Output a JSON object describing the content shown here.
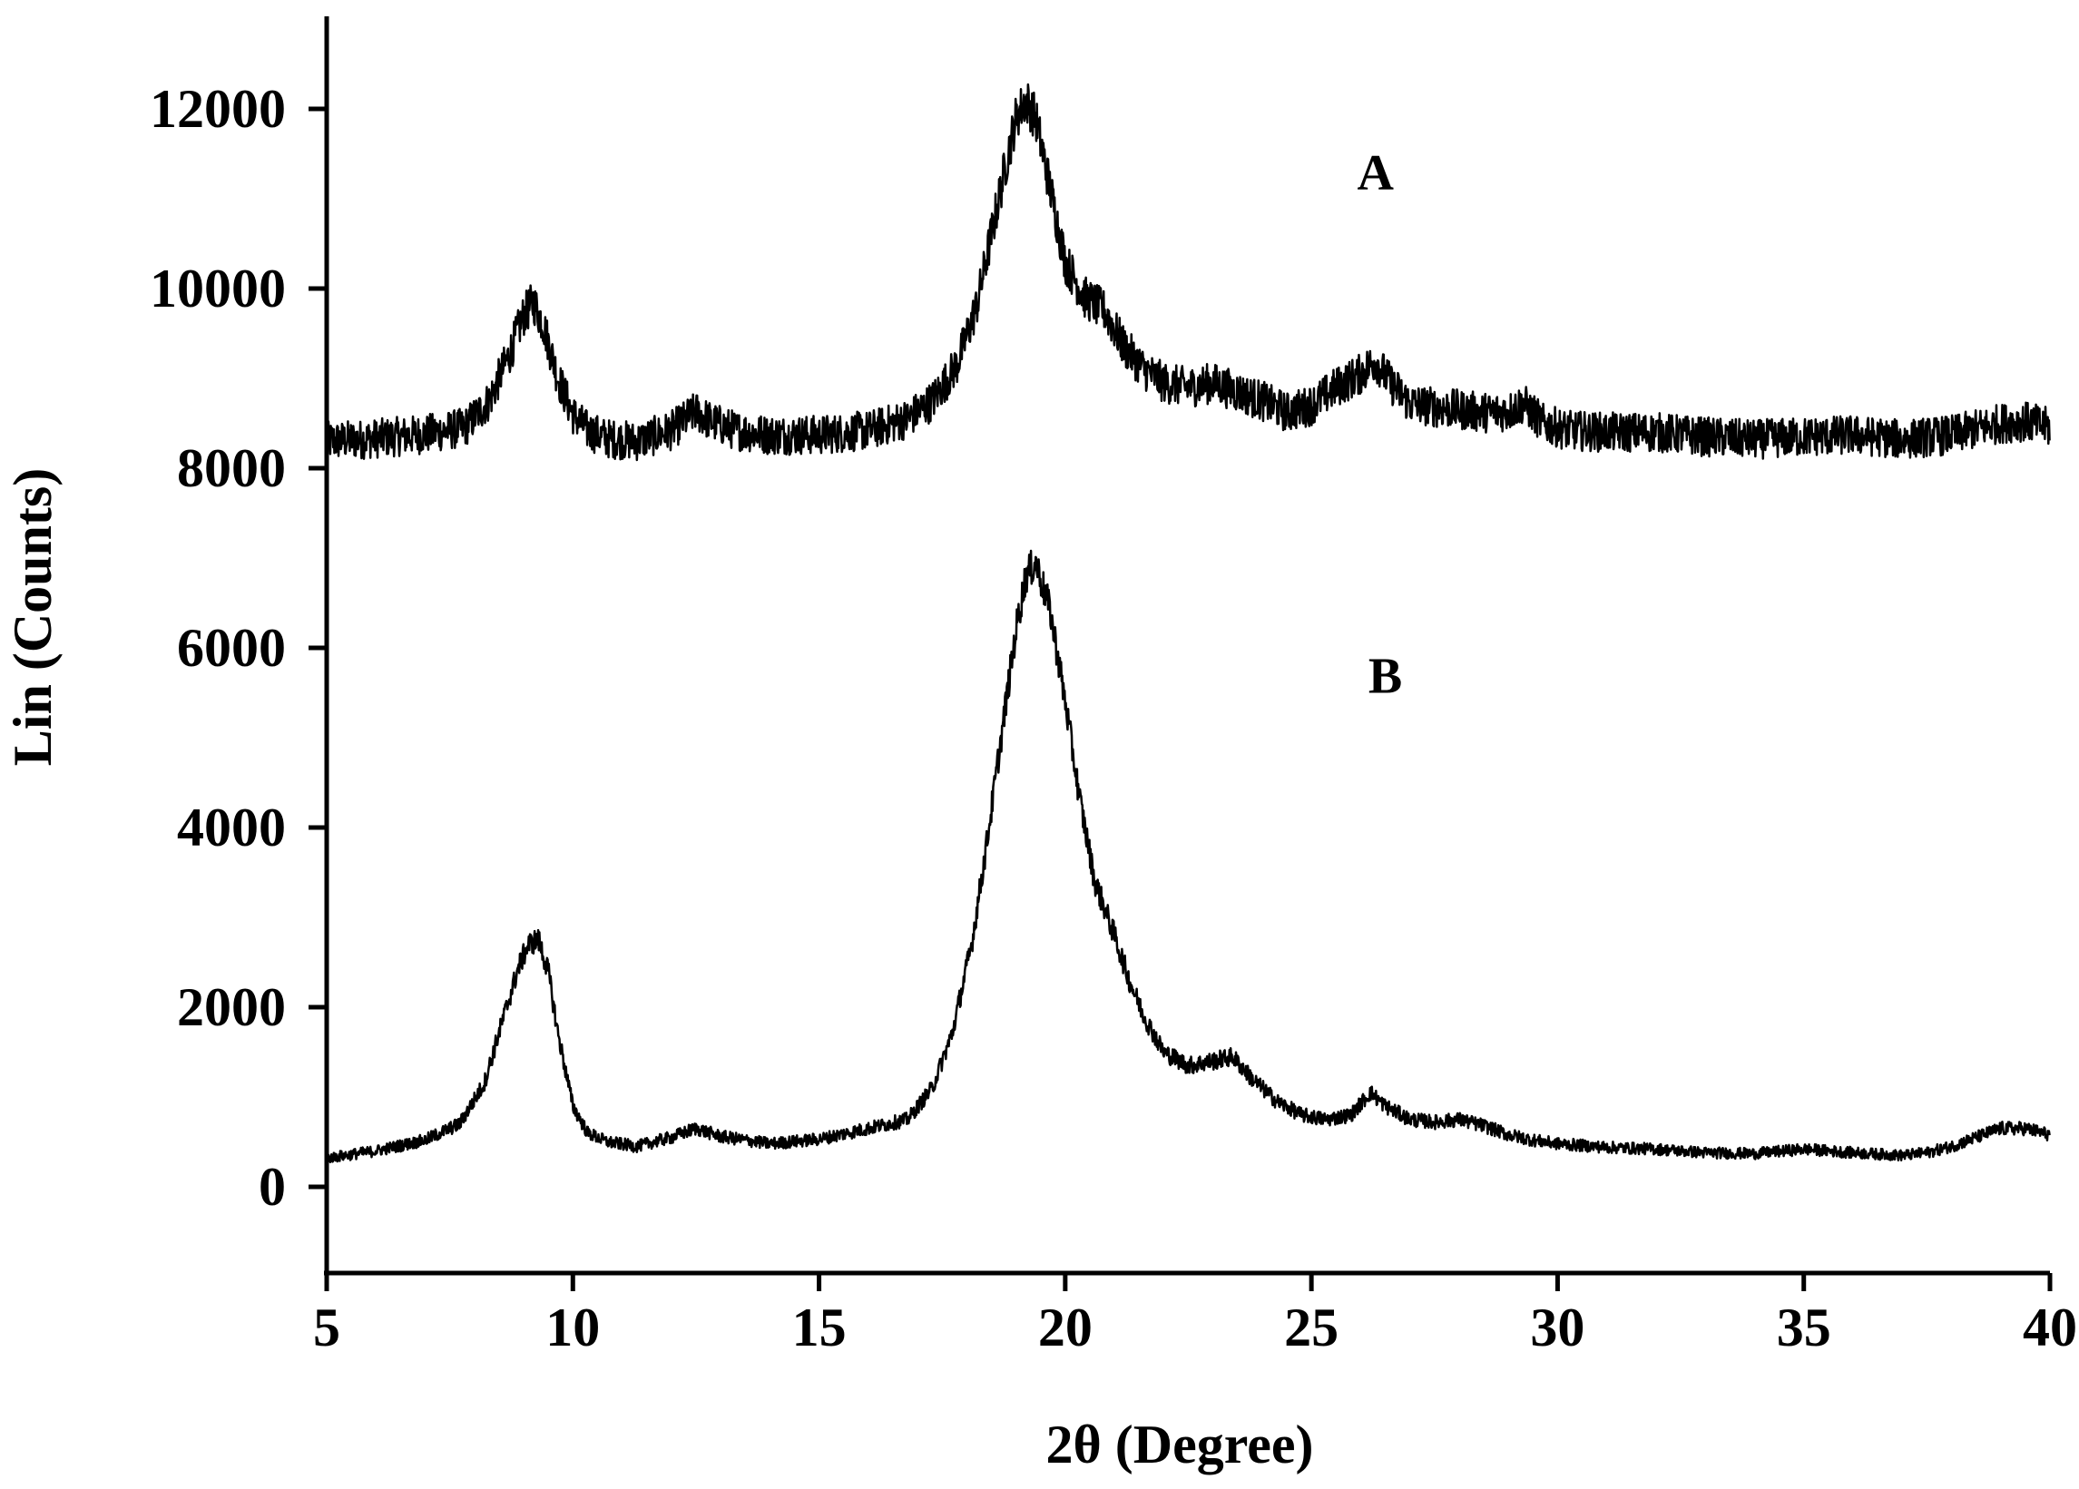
{
  "chart_data": {
    "type": "line",
    "xlabel": "2θ (Degree)",
    "ylabel": "Lin (Counts)",
    "xlim": [
      5,
      40
    ],
    "ylim": [
      -1000,
      13000
    ],
    "xticks": [
      5,
      10,
      15,
      20,
      25,
      30,
      35,
      40
    ],
    "xtick_labels": [
      "5",
      "10",
      "15",
      "20",
      "25",
      "30",
      "35",
      "40"
    ],
    "yticks": [
      0,
      2000,
      4000,
      6000,
      8000,
      10000,
      12000
    ],
    "ytick_labels": [
      "0",
      "2000",
      "4000",
      "6000",
      "8000",
      "10000",
      "12000"
    ],
    "grid": false,
    "series": [
      {
        "name": "A",
        "label_position": {
          "x": 26.3,
          "y": 11100
        },
        "color": "#000000",
        "x": [
          5.0,
          6.0,
          7.0,
          7.8,
          8.3,
          8.7,
          9.0,
          9.2,
          9.4,
          9.7,
          10.0,
          10.3,
          10.7,
          11.3,
          12.0,
          12.5,
          12.8,
          13.3,
          14.0,
          15.0,
          16.0,
          16.8,
          17.3,
          17.8,
          18.2,
          18.5,
          18.8,
          19.0,
          19.2,
          19.4,
          19.7,
          20.0,
          20.4,
          20.8,
          21.2,
          21.6,
          22.0,
          22.5,
          23.0,
          23.5,
          24.0,
          24.5,
          25.0,
          25.5,
          26.0,
          26.3,
          26.6,
          27.0,
          27.5,
          28.0,
          28.5,
          29.0,
          29.3,
          29.7,
          30.2,
          31.0,
          32.0,
          33.0,
          34.0,
          35.0,
          36.0,
          37.0,
          38.0,
          39.0,
          39.5,
          40.0
        ],
        "y": [
          8300,
          8330,
          8380,
          8450,
          8750,
          9250,
          9700,
          9850,
          9600,
          9000,
          8600,
          8420,
          8330,
          8300,
          8420,
          8630,
          8520,
          8420,
          8370,
          8370,
          8420,
          8550,
          8750,
          9150,
          9800,
          10600,
          11400,
          11900,
          12100,
          11900,
          11100,
          10300,
          9900,
          9750,
          9350,
          9100,
          8950,
          8900,
          8950,
          8850,
          8750,
          8620,
          8700,
          8900,
          9050,
          9200,
          8950,
          8720,
          8680,
          8650,
          8620,
          8630,
          8720,
          8500,
          8420,
          8400,
          8400,
          8350,
          8320,
          8350,
          8370,
          8320,
          8370,
          8500,
          8520,
          8450
        ]
      },
      {
        "name": "B",
        "label_position": {
          "x": 26.5,
          "y": 5500
        },
        "color": "#000000",
        "x": [
          5.0,
          6.0,
          7.0,
          7.7,
          8.2,
          8.6,
          8.9,
          9.1,
          9.3,
          9.5,
          9.7,
          10.0,
          10.3,
          10.7,
          11.3,
          12.0,
          12.5,
          13.0,
          13.5,
          14.0,
          15.0,
          16.0,
          16.8,
          17.3,
          17.7,
          18.1,
          18.4,
          18.7,
          19.0,
          19.2,
          19.4,
          19.7,
          20.0,
          20.3,
          20.6,
          21.0,
          21.3,
          21.6,
          22.0,
          22.5,
          23.0,
          23.4,
          23.8,
          24.3,
          24.8,
          25.3,
          25.8,
          26.2,
          26.5,
          27.0,
          27.5,
          28.0,
          28.5,
          29.0,
          29.5,
          30.0,
          31.0,
          32.0,
          33.0,
          34.0,
          35.0,
          36.0,
          37.0,
          37.5,
          38.0,
          38.5,
          39.0,
          39.5,
          40.0
        ],
        "y": [
          320,
          400,
          520,
          700,
          1150,
          1900,
          2450,
          2700,
          2750,
          2400,
          1700,
          900,
          600,
          500,
          450,
          550,
          650,
          560,
          520,
          480,
          530,
          650,
          750,
          1100,
          1700,
          2700,
          3800,
          5000,
          6200,
          6800,
          6950,
          6400,
          5400,
          4300,
          3400,
          2800,
          2300,
          1900,
          1500,
          1350,
          1400,
          1450,
          1200,
          950,
          800,
          750,
          800,
          1050,
          900,
          750,
          720,
          750,
          680,
          580,
          520,
          480,
          440,
          420,
          380,
          370,
          420,
          380,
          350,
          380,
          450,
          550,
          650,
          650,
          580
        ]
      }
    ]
  }
}
